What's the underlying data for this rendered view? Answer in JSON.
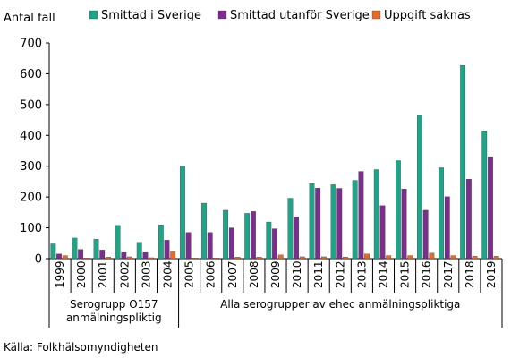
{
  "chart_data": {
    "type": "bar",
    "ylabel": "Antal fall",
    "ylim": [
      0,
      700
    ],
    "yticks": [
      0,
      100,
      200,
      300,
      400,
      500,
      600,
      700
    ],
    "categories": [
      "1999",
      "2000",
      "2001",
      "2002",
      "2003",
      "2004",
      "2005",
      "2006",
      "2007",
      "2008",
      "2009",
      "2010",
      "2011",
      "2012",
      "2013",
      "2014",
      "2015",
      "2016",
      "2017",
      "2018",
      "2019"
    ],
    "series": [
      {
        "name": "Smittad i Sverige",
        "color": "#1fa487",
        "values": [
          48,
          67,
          63,
          108,
          53,
          110,
          300,
          180,
          157,
          147,
          119,
          196,
          244,
          240,
          254,
          289,
          318,
          467,
          295,
          627,
          415
        ]
      },
      {
        "name": "Smittad utanför Sverige",
        "color": "#7b2e8c",
        "values": [
          15,
          30,
          28,
          20,
          20,
          60,
          85,
          85,
          100,
          153,
          97,
          136,
          229,
          228,
          283,
          172,
          226,
          157,
          201,
          258,
          331
        ]
      },
      {
        "name": "Uppgift saknas",
        "color": "#e36c2b",
        "values": [
          10,
          2,
          5,
          6,
          3,
          24,
          2,
          2,
          5,
          5,
          12,
          6,
          6,
          5,
          15,
          10,
          10,
          18,
          10,
          8,
          8
        ]
      }
    ],
    "legend_position": "top",
    "grid": false,
    "group_labels": [
      {
        "label": "Serogrupp O157 anmälningspliktig",
        "lines": [
          "Serogrupp O157",
          "anmälningspliktig"
        ],
        "from": "1999",
        "to": "2004"
      },
      {
        "label": "Alla serogrupper av ehec anmälningspliktiga",
        "lines": [
          "Alla serogrupper av ehec anmälningspliktiga"
        ],
        "from": "2005",
        "to": "2019"
      }
    ],
    "source": "Källa: Folkhälsomyndigheten"
  }
}
